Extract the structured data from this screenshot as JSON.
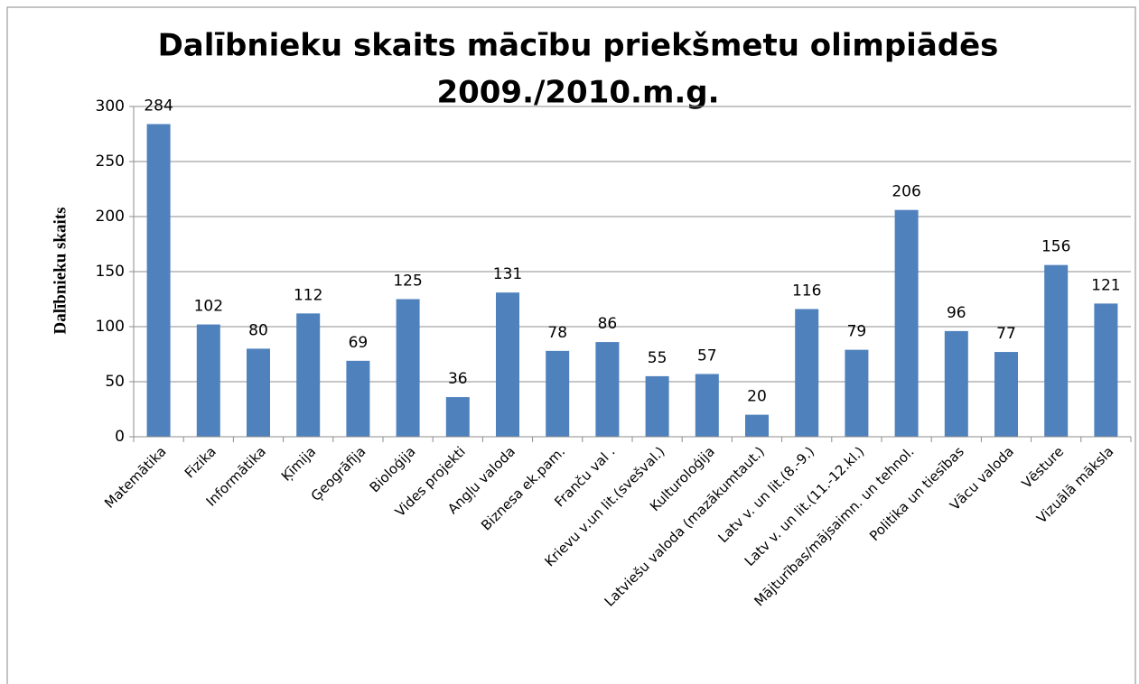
{
  "chart_data": {
    "type": "bar",
    "title": [
      "Dalībnieku skaits mācību priekšmetu olimpiādēs",
      "2009./2010.m.g."
    ],
    "y_label": "Dalībnieku skaits",
    "categories": [
      "Matemātika",
      "Fizika",
      "Informātika",
      "Ķīmija",
      "Ģeogrāfija",
      "Bioloģija",
      "Vides projekti",
      "Angļu valoda",
      "Biznesa ek.pam.",
      "Franču val .",
      "Krievu v.un lit.(svešval.)",
      "Kulturoloģija",
      "Latviešu valoda (mazākumtaut.)",
      "Latv v. un lit.(8.-9.)",
      "Latv v. un lit.(11.-12.kl.)",
      "Mājturības/mājsaimn. un tehnol.",
      "Politika un tiesības",
      "Vācu valoda",
      "Vēsture",
      "Vizuālā māksla"
    ],
    "values": [
      284,
      102,
      80,
      112,
      69,
      125,
      36,
      131,
      78,
      86,
      55,
      57,
      20,
      116,
      79,
      206,
      96,
      77,
      156,
      121
    ],
    "color": "#4f81bd",
    "ylim": [
      0,
      300
    ],
    "yticks": [
      0,
      50,
      100,
      150,
      200,
      250,
      300
    ],
    "grid": true
  }
}
